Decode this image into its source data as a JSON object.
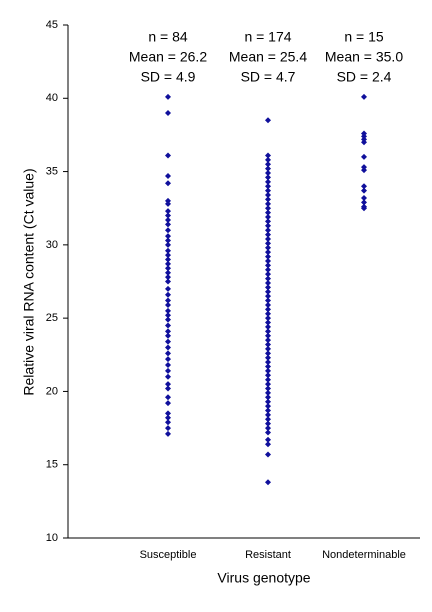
{
  "chart_data": {
    "type": "strip",
    "x_label": "Virus genotype",
    "y_label": "Relative viral RNA content  (Ct value)",
    "categories": [
      "Susceptible",
      "Resistant",
      "Nondeterminable"
    ],
    "annotations": [
      [
        "n = 84",
        "Mean = 26.2",
        "SD = 4.9"
      ],
      [
        "n = 174",
        "Mean = 25.4",
        "SD = 4.7"
      ],
      [
        "n = 15",
        "Mean = 35.0",
        "SD = 2.4"
      ]
    ],
    "values": [
      [
        40.1,
        39.0,
        36.1,
        34.7,
        34.2,
        33.0,
        32.8,
        32.3,
        32.0,
        31.7,
        31.4,
        31.0,
        30.6,
        30.3,
        30.0,
        29.6,
        29.3,
        29.0,
        28.7,
        28.4,
        28.1,
        27.8,
        27.5,
        27.0,
        26.6,
        26.2,
        25.9,
        25.5,
        25.2,
        24.9,
        24.5,
        24.1,
        23.8,
        23.4,
        23.0,
        22.6,
        22.2,
        21.8,
        21.4,
        21.0,
        20.5,
        20.2,
        19.6,
        19.2,
        18.5,
        18.2,
        17.9,
        17.5,
        17.1
      ],
      [
        38.5,
        36.1,
        35.8,
        35.5,
        35.2,
        34.9,
        34.6,
        34.3,
        34.0,
        33.7,
        33.4,
        33.1,
        32.8,
        32.5,
        32.2,
        31.9,
        31.6,
        31.3,
        31.0,
        30.7,
        30.4,
        30.1,
        29.8,
        29.5,
        29.2,
        28.9,
        28.6,
        28.3,
        28.0,
        27.7,
        27.4,
        27.1,
        26.8,
        26.5,
        26.2,
        25.9,
        25.6,
        25.3,
        25.0,
        24.7,
        24.4,
        24.1,
        23.8,
        23.5,
        23.2,
        22.9,
        22.6,
        22.3,
        22.0,
        21.7,
        21.4,
        21.1,
        20.8,
        20.5,
        20.2,
        19.9,
        19.6,
        19.3,
        19.0,
        18.7,
        18.4,
        18.1,
        17.8,
        17.5,
        17.2,
        16.7,
        16.4,
        15.7,
        13.8
      ],
      [
        40.1,
        37.6,
        37.4,
        37.2,
        37.0,
        36.0,
        35.3,
        35.1,
        34.0,
        33.7,
        33.2,
        32.9,
        32.6,
        32.5
      ]
    ],
    "color": "#10109c",
    "ylim": [
      10,
      45
    ],
    "yticks": [
      10,
      15,
      20,
      25,
      30,
      35,
      40,
      45
    ]
  }
}
